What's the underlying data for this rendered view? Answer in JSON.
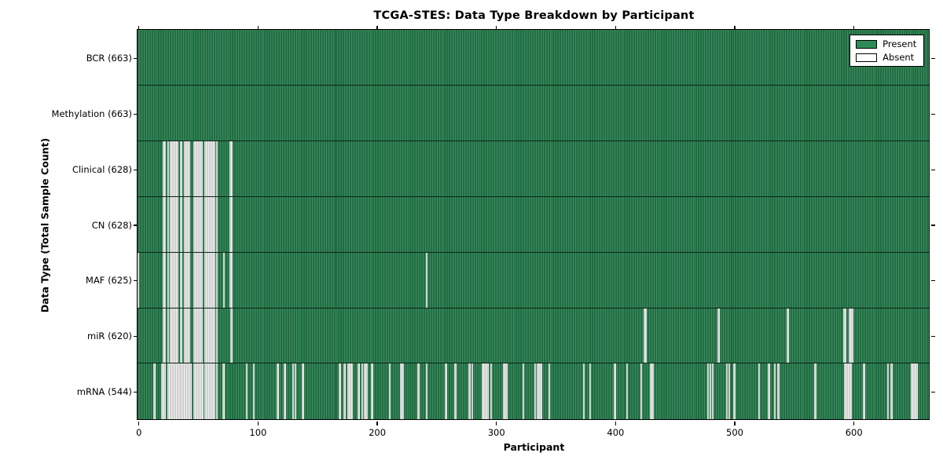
{
  "chart_data": {
    "type": "heatmap",
    "title": "TCGA-STES: Data Type Breakdown by Participant",
    "xlabel": "Participant",
    "ylabel": "Data Type (Total Sample Count)",
    "n_participants": 663,
    "x_axis_range": [
      -0.5,
      663.5
    ],
    "xticks": [
      0,
      100,
      200,
      300,
      400,
      500,
      600
    ],
    "grid": false,
    "legend_position": "upper right",
    "legend": {
      "present": "Present",
      "absent": "Absent"
    },
    "colors": {
      "present": "#2E8B57",
      "present_edge": "#123categories",
      "absent": "#e6e6e6",
      "absent_edge": "#8c8c8c",
      "axis": "#000000"
    },
    "rows": [
      {
        "name": "BCR",
        "label": "BCR (663)",
        "present_count": 663,
        "absent_participants": []
      },
      {
        "name": "Methylation",
        "label": "Methylation (663)",
        "present_count": 663,
        "absent_participants": []
      },
      {
        "name": "Clinical",
        "label": "Clinical (628)",
        "present_count": 628,
        "absent_participants": [
          21,
          22,
          25,
          27,
          28,
          29,
          30,
          31,
          32,
          33,
          36,
          39,
          40,
          41,
          42,
          43,
          47,
          48,
          49,
          50,
          51,
          52,
          53,
          56,
          57,
          58,
          59,
          60,
          61,
          62,
          63,
          64,
          66,
          77,
          78
        ]
      },
      {
        "name": "CN",
        "label": "CN (628)",
        "present_count": 628,
        "absent_participants": [
          21,
          22,
          25,
          27,
          28,
          29,
          30,
          31,
          32,
          33,
          36,
          39,
          40,
          41,
          42,
          43,
          47,
          48,
          49,
          50,
          51,
          52,
          53,
          56,
          57,
          58,
          59,
          60,
          61,
          62,
          63,
          64,
          66,
          77,
          78
        ]
      },
      {
        "name": "MAF",
        "label": "MAF (625)",
        "present_count": 625,
        "absent_participants": [
          0,
          21,
          22,
          25,
          27,
          28,
          29,
          30,
          31,
          32,
          33,
          36,
          39,
          40,
          41,
          42,
          43,
          47,
          48,
          49,
          50,
          51,
          52,
          53,
          56,
          57,
          58,
          59,
          60,
          61,
          62,
          63,
          64,
          66,
          72,
          77,
          78,
          242
        ]
      },
      {
        "name": "miR",
        "label": "miR (620)",
        "present_count": 620,
        "absent_participants": [
          21,
          22,
          25,
          27,
          28,
          29,
          30,
          31,
          32,
          33,
          36,
          39,
          40,
          41,
          42,
          43,
          47,
          48,
          49,
          50,
          51,
          52,
          53,
          56,
          57,
          58,
          59,
          60,
          61,
          62,
          63,
          64,
          66,
          78,
          425,
          426,
          487,
          545,
          592,
          593,
          597,
          598,
          599
        ]
      },
      {
        "name": "mRNA",
        "label": "mRNA (544)",
        "present_count": 544,
        "absent_participants": [
          13,
          14,
          20,
          21,
          22,
          25,
          26,
          27,
          28,
          29,
          30,
          31,
          32,
          33,
          34,
          36,
          37,
          38,
          39,
          40,
          41,
          42,
          43,
          44,
          47,
          48,
          49,
          50,
          51,
          52,
          53,
          54,
          56,
          57,
          58,
          59,
          60,
          61,
          62,
          63,
          64,
          66,
          71,
          72,
          91,
          97,
          117,
          123,
          130,
          132,
          138,
          169,
          173,
          176,
          177,
          178,
          179,
          185,
          188,
          190,
          191,
          192,
          196,
          211,
          220,
          221,
          222,
          235,
          242,
          258,
          266,
          278,
          280,
          289,
          291,
          293,
          296,
          307,
          308,
          309,
          323,
          333,
          335,
          336,
          337,
          338,
          345,
          374,
          379,
          400,
          410,
          422,
          430,
          431,
          432,
          478,
          480,
          482,
          494,
          496,
          500,
          521,
          529,
          534,
          537,
          568,
          593,
          594,
          595,
          596,
          597,
          598,
          609,
          629,
          632,
          649,
          650,
          651,
          653
        ]
      }
    ]
  }
}
